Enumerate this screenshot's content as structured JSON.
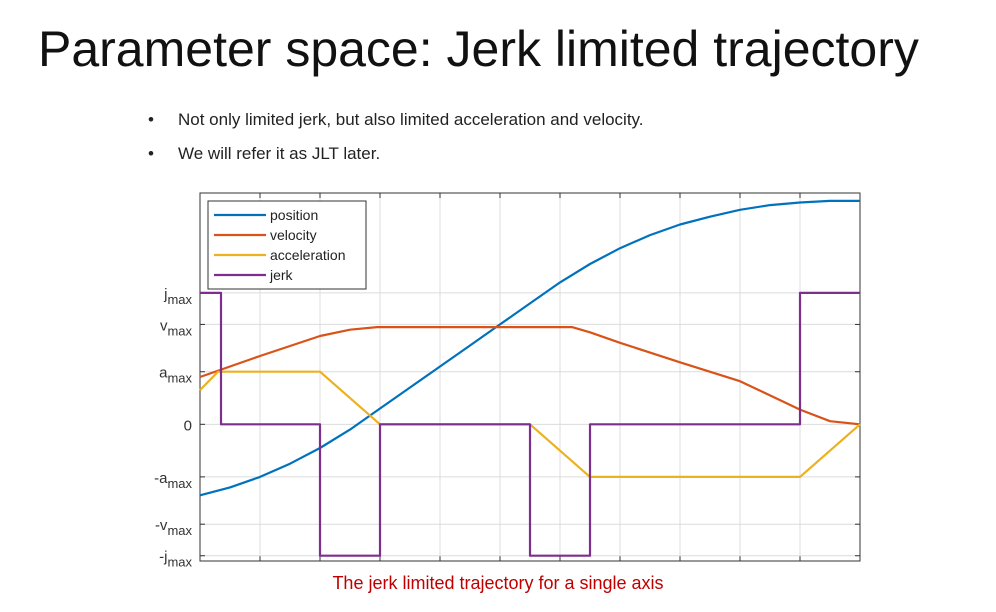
{
  "slide": {
    "title": "Parameter space: Jerk limited trajectory",
    "bullets": [
      "Not only limited jerk, but also limited acceleration and velocity.",
      "We will refer it as JLT later."
    ],
    "bullet_glyph": "•",
    "caption": "The jerk limited trajectory for a single axis"
  },
  "chart_data": {
    "type": "line",
    "title": "",
    "xlabel": "",
    "ylabel": "",
    "x_ticks_labeled": false,
    "grid": true,
    "legend_position": "top-left",
    "y_ticks": [
      {
        "value": -2.5,
        "base": "-j",
        "sub": "max"
      },
      {
        "value": -1.9,
        "base": "-v",
        "sub": "max"
      },
      {
        "value": -1.0,
        "base": "-a",
        "sub": "max"
      },
      {
        "value": 0,
        "base": "0",
        "sub": ""
      },
      {
        "value": 1.0,
        "base": "a",
        "sub": "max"
      },
      {
        "value": 1.9,
        "base": "v",
        "sub": "max"
      },
      {
        "value": 2.5,
        "base": "j",
        "sub": "max"
      }
    ],
    "xlim": [
      0,
      11
    ],
    "ylim": [
      -2.6,
      4.4
    ],
    "series": [
      {
        "name": "position",
        "color": "#0072BD",
        "x": [
          0,
          0.5,
          1,
          1.5,
          2,
          2.5,
          3,
          3.5,
          4,
          4.5,
          5,
          5.5,
          6,
          6.5,
          7,
          7.5,
          8,
          8.5,
          9,
          9.5,
          10,
          10.5,
          11
        ],
        "y": [
          -1.35,
          -1.2,
          -1.0,
          -0.75,
          -0.45,
          -0.1,
          0.3,
          0.7,
          1.1,
          1.5,
          1.9,
          2.3,
          2.7,
          3.05,
          3.35,
          3.6,
          3.8,
          3.95,
          4.08,
          4.17,
          4.22,
          4.25,
          4.25
        ]
      },
      {
        "name": "velocity",
        "color": "#D95319",
        "x": [
          0,
          1,
          2,
          2.5,
          2.95,
          3.5,
          4.2,
          5.5,
          6.2,
          6.5,
          7,
          8,
          9,
          9.5,
          10,
          10.5,
          11
        ],
        "y": [
          0.9,
          1.3,
          1.68,
          1.8,
          1.85,
          1.85,
          1.85,
          1.85,
          1.85,
          1.75,
          1.55,
          1.18,
          0.82,
          0.55,
          0.28,
          0.06,
          0
        ]
      },
      {
        "name": "acceleration",
        "color": "#EDB120",
        "x": [
          0,
          0.3,
          2,
          3,
          4,
          5.5,
          6.5,
          10,
          11
        ],
        "y": [
          0.65,
          1.0,
          1.0,
          0,
          0,
          0,
          -1.0,
          -1.0,
          0
        ]
      },
      {
        "name": "jerk",
        "color": "#7E2F8E",
        "x": [
          0,
          0.35,
          0.35,
          2,
          2,
          3,
          3,
          5.5,
          5.5,
          6.5,
          6.5,
          10,
          10,
          11
        ],
        "y": [
          2.5,
          2.5,
          0,
          0,
          -2.5,
          -2.5,
          0,
          0,
          -2.5,
          -2.5,
          0,
          0,
          2.5,
          2.5
        ]
      }
    ]
  }
}
